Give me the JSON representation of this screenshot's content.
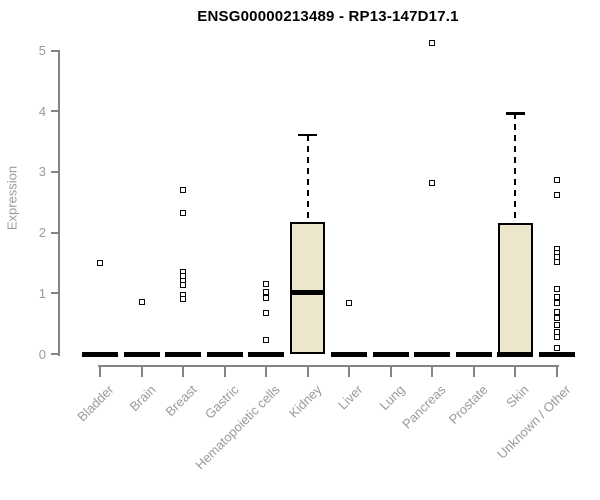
{
  "colors": {
    "box_fill": "#ECE7CA",
    "axis_line": "#858585",
    "tick_label": "#9A9A9A",
    "title_text": "#000000",
    "data_ink": "#000000"
  },
  "chart_data": {
    "type": "boxplot",
    "title": "ENSG00000213489 - RP13-147D17.1",
    "xlabel": "",
    "ylabel": "Expression",
    "ylim": [
      0,
      5
    ],
    "yticks": [
      0,
      1,
      2,
      3,
      4,
      5
    ],
    "grid": false,
    "legend": false,
    "categories": [
      "Bladder",
      "Brain",
      "Breast",
      "Gastric",
      "Hematopoietic cells",
      "Kidney",
      "Liver",
      "Lung",
      "Pancreas",
      "Prostate",
      "Skin",
      "Unknown / Other"
    ],
    "series": [
      {
        "category": "Bladder",
        "q1": 0,
        "median": 0,
        "q3": 0,
        "whisker_low": 0,
        "whisker_high": 0,
        "outliers": [
          1.5
        ]
      },
      {
        "category": "Brain",
        "q1": 0,
        "median": 0,
        "q3": 0,
        "whisker_low": 0,
        "whisker_high": 0,
        "outliers": [
          0.86
        ]
      },
      {
        "category": "Breast",
        "q1": 0,
        "median": 0,
        "q3": 0,
        "whisker_low": 0,
        "whisker_high": 0,
        "outliers": [
          2.7,
          2.32,
          1.35,
          1.28,
          1.21,
          1.13,
          0.97,
          0.9
        ]
      },
      {
        "category": "Gastric",
        "q1": 0,
        "median": 0,
        "q3": 0,
        "whisker_low": 0,
        "whisker_high": 0,
        "outliers": []
      },
      {
        "category": "Hematopoietic cells",
        "q1": 0,
        "median": 0,
        "q3": 0,
        "whisker_low": 0,
        "whisker_high": 0,
        "outliers": [
          1.15,
          1.02,
          0.92,
          0.68,
          0.23
        ]
      },
      {
        "category": "Kidney",
        "q1": 0,
        "median": 1.02,
        "q3": 2.17,
        "whisker_low": 0,
        "whisker_high": 3.61,
        "outliers": []
      },
      {
        "category": "Liver",
        "q1": 0,
        "median": 0,
        "q3": 0,
        "whisker_low": 0,
        "whisker_high": 0,
        "outliers": [
          0.84
        ]
      },
      {
        "category": "Lung",
        "q1": 0,
        "median": 0,
        "q3": 0,
        "whisker_low": 0,
        "whisker_high": 0,
        "outliers": []
      },
      {
        "category": "Pancreas",
        "q1": 0,
        "median": 0,
        "q3": 0,
        "whisker_low": 0,
        "whisker_high": 0,
        "outliers": [
          5.13,
          2.82
        ]
      },
      {
        "category": "Prostate",
        "q1": 0,
        "median": 0,
        "q3": 0,
        "whisker_low": 0,
        "whisker_high": 0,
        "outliers": []
      },
      {
        "category": "Skin",
        "q1": 0,
        "median": 0,
        "q3": 2.16,
        "whisker_low": 0,
        "whisker_high": 3.97,
        "outliers": []
      },
      {
        "category": "Unknown / Other",
        "q1": 0,
        "median": 0,
        "q3": 0,
        "whisker_low": 0,
        "whisker_high": 0,
        "outliers": [
          2.87,
          2.62,
          1.73,
          1.66,
          1.6,
          1.52,
          1.07,
          0.94,
          0.84,
          0.69,
          0.59,
          0.48,
          0.36,
          0.28,
          0.1
        ]
      }
    ]
  }
}
